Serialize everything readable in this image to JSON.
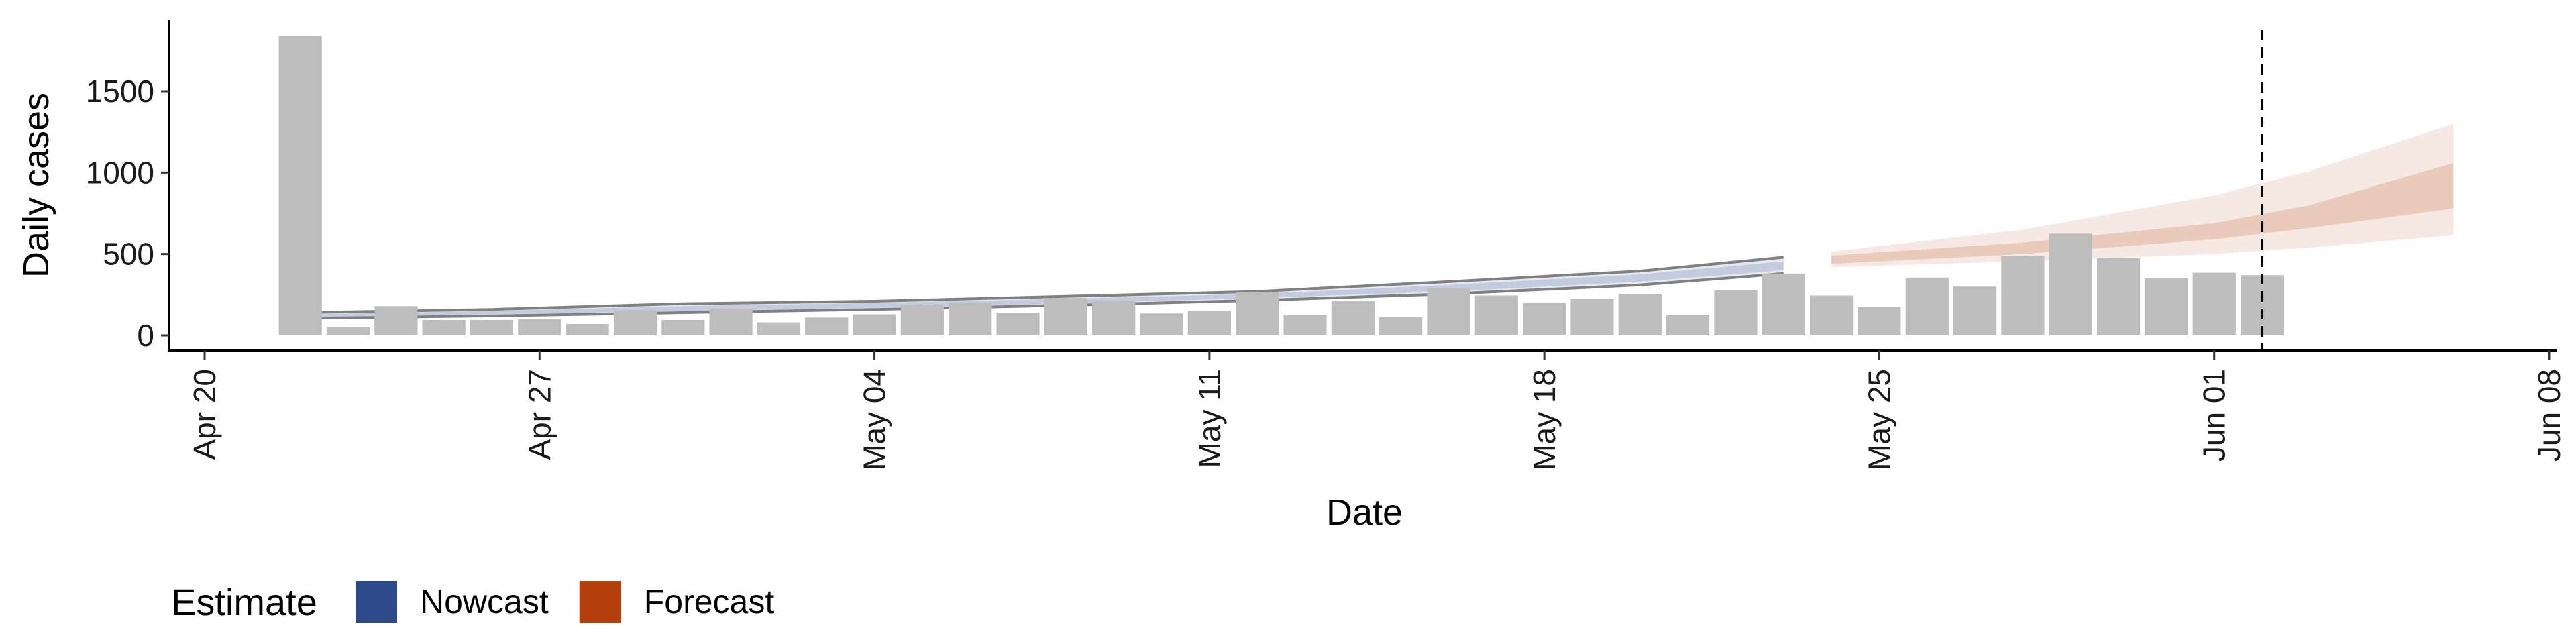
{
  "chart_data": {
    "type": "bar",
    "title": "",
    "xlabel": "Date",
    "ylabel": "Daily cases",
    "x_range": [
      "2020-04-20",
      "2020-06-08"
    ],
    "ylim": [
      -80,
      1950
    ],
    "x_ticks": [
      {
        "date": "2020-04-20",
        "label": "Apr 20"
      },
      {
        "date": "2020-04-27",
        "label": "Apr 27"
      },
      {
        "date": "2020-05-04",
        "label": "May 04"
      },
      {
        "date": "2020-05-11",
        "label": "May 11"
      },
      {
        "date": "2020-05-18",
        "label": "May 18"
      },
      {
        "date": "2020-05-25",
        "label": "May 25"
      },
      {
        "date": "2020-06-01",
        "label": "Jun 01"
      },
      {
        "date": "2020-06-08",
        "label": "Jun 08"
      }
    ],
    "y_ticks": [
      0,
      500,
      1000,
      1500
    ],
    "grid": false,
    "bar_color": "#bdbdbd",
    "bars": {
      "dates": [
        "2020-04-22",
        "2020-04-23",
        "2020-04-24",
        "2020-04-25",
        "2020-04-26",
        "2020-04-27",
        "2020-04-28",
        "2020-04-29",
        "2020-04-30",
        "2020-05-01",
        "2020-05-02",
        "2020-05-03",
        "2020-05-04",
        "2020-05-05",
        "2020-05-06",
        "2020-05-07",
        "2020-05-08",
        "2020-05-09",
        "2020-05-10",
        "2020-05-11",
        "2020-05-12",
        "2020-05-13",
        "2020-05-14",
        "2020-05-15",
        "2020-05-16",
        "2020-05-17",
        "2020-05-18",
        "2020-05-19",
        "2020-05-20",
        "2020-05-21",
        "2020-05-22",
        "2020-05-23",
        "2020-05-24",
        "2020-05-25",
        "2020-05-26",
        "2020-05-27",
        "2020-05-28",
        "2020-05-29",
        "2020-05-30",
        "2020-05-31",
        "2020-06-01",
        "2020-06-02"
      ],
      "values": [
        1840,
        50,
        180,
        95,
        95,
        100,
        70,
        155,
        95,
        165,
        80,
        110,
        130,
        190,
        200,
        140,
        230,
        215,
        135,
        150,
        265,
        125,
        210,
        115,
        290,
        245,
        200,
        225,
        255,
        125,
        280,
        380,
        245,
        175,
        355,
        300,
        490,
        625,
        475,
        350,
        385,
        370
      ]
    },
    "series": [
      {
        "name": "Nowcast",
        "color": "#2d4a8a",
        "dates": [
          "2020-04-22",
          "2020-04-26",
          "2020-04-30",
          "2020-05-04",
          "2020-05-08",
          "2020-05-12",
          "2020-05-16",
          "2020-05-20",
          "2020-05-23"
        ],
        "lower": [
          105,
          120,
          140,
          160,
          185,
          215,
          255,
          310,
          380
        ],
        "upper": [
          140,
          160,
          195,
          210,
          240,
          270,
          330,
          395,
          480
        ],
        "inner_lower": [
          112,
          130,
          150,
          170,
          195,
          230,
          270,
          330,
          400
        ],
        "inner_upper": [
          130,
          150,
          180,
          200,
          225,
          255,
          310,
          375,
          455
        ]
      },
      {
        "name": "Forecast",
        "color": "#b5400d",
        "dates": [
          "2020-05-24",
          "2020-05-28",
          "2020-06-01",
          "2020-06-03",
          "2020-06-06"
        ],
        "lower": [
          420,
          455,
          500,
          540,
          615
        ],
        "upper": [
          515,
          650,
          860,
          1010,
          1300
        ],
        "inner_lower": [
          440,
          500,
          590,
          660,
          780
        ],
        "inner_upper": [
          490,
          570,
          690,
          800,
          1060
        ]
      }
    ],
    "vline_date": "2020-06-02",
    "legend": {
      "title": "Estimate",
      "placement": "bottom-left",
      "entries": [
        {
          "label": "Nowcast",
          "color": "#2d4a8a"
        },
        {
          "label": "Forecast",
          "color": "#b5400d"
        }
      ]
    }
  }
}
